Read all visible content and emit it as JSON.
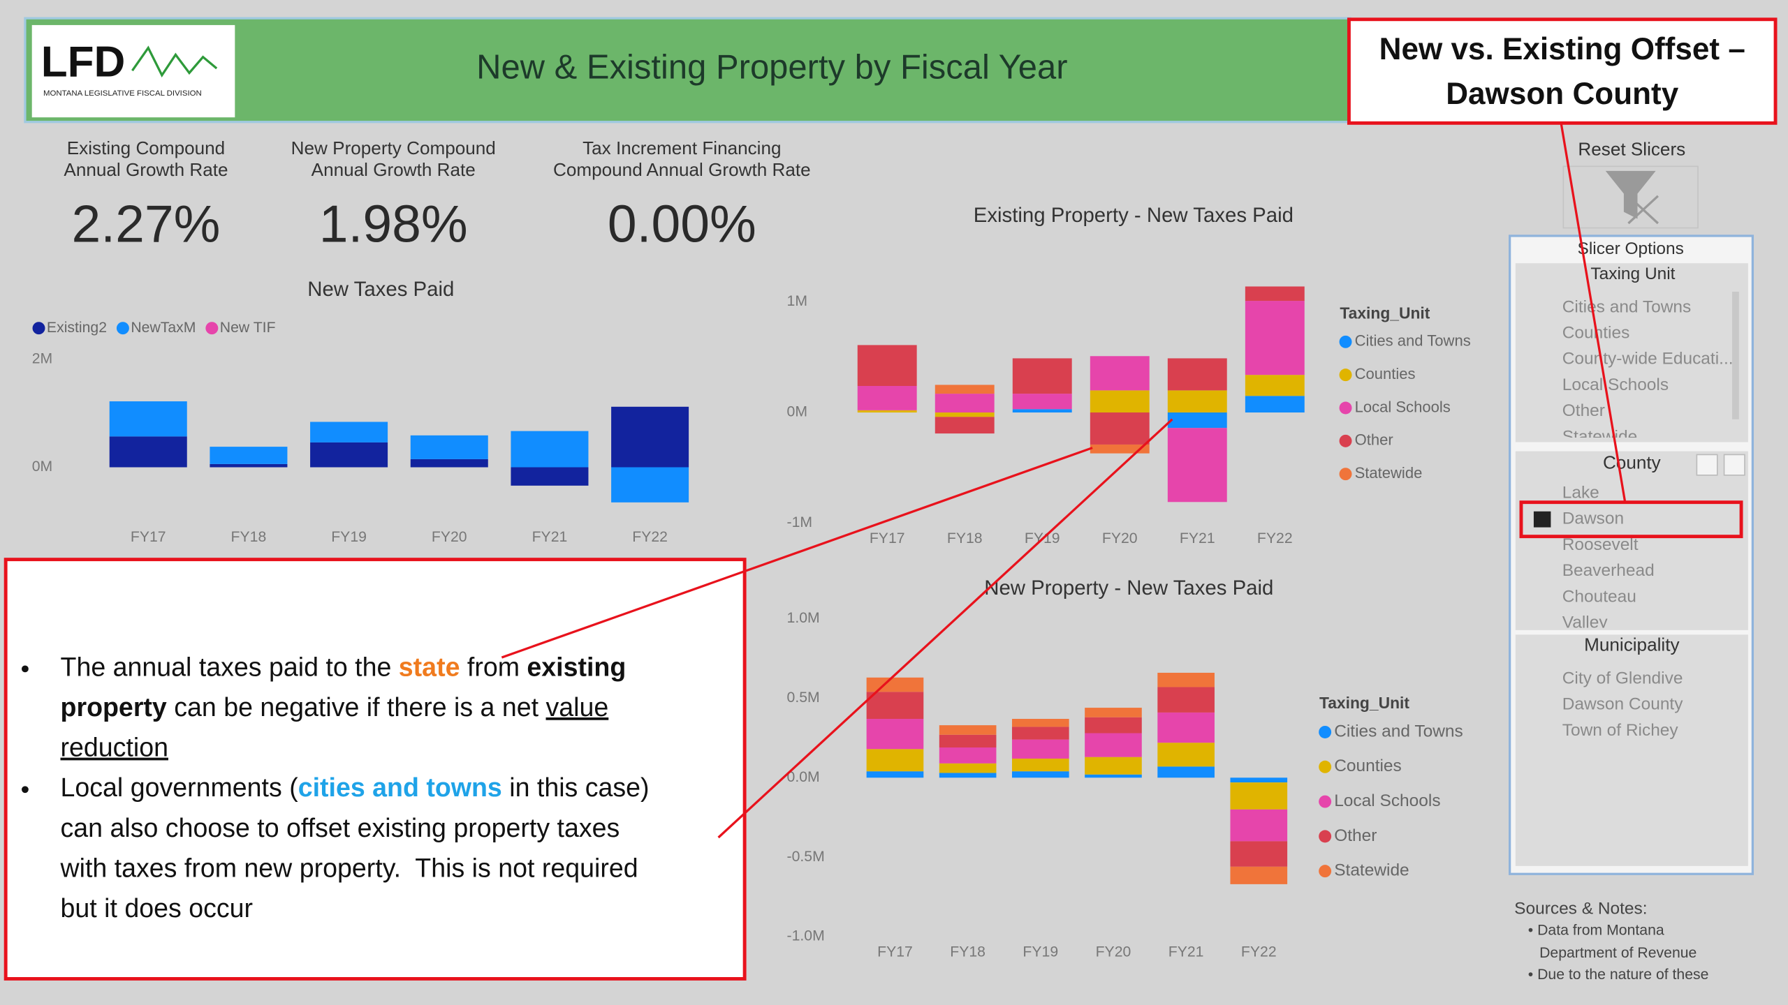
{
  "header": {
    "logo": "LFD",
    "logo_subtitle": "MONTANA LEGISLATIVE FISCAL DIVISION",
    "title": "New & Existing Property by Fiscal Year"
  },
  "callout_title": [
    "New vs. Existing Offset –",
    "Dawson County"
  ],
  "kpis": [
    {
      "label": [
        "Existing Compound",
        "Annual Growth Rate"
      ],
      "value": "2.27%"
    },
    {
      "label": [
        "New Property Compound",
        "Annual Growth Rate"
      ],
      "value": "1.98%"
    },
    {
      "label": [
        "Tax Increment Financing",
        "Compound Annual Growth Rate"
      ],
      "value": "0.00%"
    }
  ],
  "annotation": {
    "bullets": [
      {
        "lines": [
          [
            {
              "text": "The annual taxes paid to the ",
              "style": "normal"
            },
            {
              "text": "state",
              "style": "orange"
            },
            {
              "text": " from ",
              "style": "normal"
            },
            {
              "text": "existing",
              "style": "bold"
            }
          ],
          [
            {
              "text": "property",
              "style": "bold"
            },
            {
              "text": " can be negative if there is a net ",
              "style": "normal"
            },
            {
              "text": "value",
              "style": "underline"
            }
          ],
          [
            {
              "text": "reduction",
              "style": "underline"
            }
          ]
        ]
      },
      {
        "lines": [
          [
            {
              "text": "Local governments (",
              "style": "normal"
            },
            {
              "text": "cities and towns",
              "style": "blue"
            },
            {
              "text": " in this case)",
              "style": "normal"
            }
          ],
          [
            {
              "text": "can also choose to offset existing property taxes",
              "style": "normal"
            }
          ],
          [
            {
              "text": "with taxes from new property.  This is not required",
              "style": "normal"
            }
          ],
          [
            {
              "text": "but it does occur",
              "style": "normal"
            }
          ]
        ]
      }
    ]
  },
  "slicers": {
    "reset": "Reset Slicers",
    "panel_title": "Slicer Options",
    "taxing_unit": {
      "title": "Taxing Unit",
      "items": [
        "Cities and Towns",
        "Counties",
        "County-wide Educati...",
        "Local Schools",
        "Other",
        "Statewide"
      ]
    },
    "county": {
      "title": "County",
      "items": [
        "Lake",
        "Dawson",
        "Roosevelt",
        "Beaverhead",
        "Chouteau",
        "Valley"
      ],
      "selected": 1
    },
    "municipality": {
      "title": "Municipality",
      "items": [
        "City of Glendive",
        "Dawson County",
        "Town of Richey"
      ]
    }
  },
  "sources": {
    "title": "Sources & Notes:",
    "lines": [
      "• Data from Montana",
      "Department of Revenue",
      "• Due to the nature of these"
    ]
  },
  "chart_data": [
    {
      "type": "bar",
      "stacked": true,
      "title": "New Taxes Paid",
      "legend": "top-left",
      "categories": [
        "FY17",
        "FY18",
        "FY19",
        "FY20",
        "FY21",
        "FY22"
      ],
      "series": [
        {
          "name": "Existing2",
          "color": "#12239E",
          "values": [
            570000,
            60000,
            460000,
            150000,
            -340000,
            1120000
          ]
        },
        {
          "name": "NewTaxM",
          "color": "#118DFF",
          "values": [
            650000,
            320000,
            380000,
            440000,
            670000,
            -650000
          ]
        },
        {
          "name": "New TIF",
          "color": "#E645AB",
          "values": [
            0,
            0,
            0,
            0,
            0,
            0
          ]
        }
      ],
      "ylim": [
        -1000000,
        2300000
      ],
      "yticks": [
        {
          "value": 0,
          "label": "0M"
        },
        {
          "value": 2000000,
          "label": "2M"
        }
      ]
    },
    {
      "type": "bar",
      "stacked": true,
      "title": "Existing Property - New Taxes Paid",
      "legend": "right",
      "legend_title": "Taxing_Unit",
      "categories": [
        "FY17",
        "FY18",
        "FY19",
        "FY20",
        "FY21",
        "FY22"
      ],
      "series": [
        {
          "name": "Cities and Towns",
          "color": "#118DFF",
          "values": [
            0,
            0,
            30000,
            0,
            -140000,
            150000
          ]
        },
        {
          "name": "Counties",
          "color": "#E0B400",
          "values": [
            20000,
            -40000,
            0,
            200000,
            200000,
            190000
          ]
        },
        {
          "name": "Local Schools",
          "color": "#E645AB",
          "values": [
            220000,
            170000,
            140000,
            310000,
            -670000,
            670000
          ]
        },
        {
          "name": "Other",
          "color": "#D9404F",
          "values": [
            370000,
            -150000,
            320000,
            -290000,
            290000,
            130000
          ]
        },
        {
          "name": "Statewide",
          "color": "#F0743A",
          "values": [
            0,
            80000,
            0,
            -80000,
            0,
            0
          ]
        }
      ],
      "ylim": [
        -1050000,
        1200000
      ],
      "yticks": [
        {
          "value": -1000000,
          "label": "-1M"
        },
        {
          "value": 0,
          "label": "0M"
        },
        {
          "value": 1000000,
          "label": "1M"
        }
      ]
    },
    {
      "type": "bar",
      "stacked": true,
      "title": "New Property - New Taxes Paid",
      "legend": "right",
      "legend_title": "Taxing_Unit",
      "categories": [
        "FY17",
        "FY18",
        "FY19",
        "FY20",
        "FY21",
        "FY22"
      ],
      "series": [
        {
          "name": "Cities and Towns",
          "color": "#118DFF",
          "values": [
            40000,
            30000,
            40000,
            20000,
            70000,
            -30000
          ]
        },
        {
          "name": "Counties",
          "color": "#E0B400",
          "values": [
            140000,
            60000,
            80000,
            110000,
            150000,
            -170000
          ]
        },
        {
          "name": "Local Schools",
          "color": "#E645AB",
          "values": [
            190000,
            100000,
            120000,
            150000,
            190000,
            -200000
          ]
        },
        {
          "name": "Other",
          "color": "#D9404F",
          "values": [
            170000,
            80000,
            80000,
            100000,
            160000,
            -160000
          ]
        },
        {
          "name": "Statewide",
          "color": "#F0743A",
          "values": [
            90000,
            60000,
            50000,
            60000,
            90000,
            -110000
          ]
        }
      ],
      "ylim": [
        -1000000,
        1000000
      ],
      "yticks": [
        {
          "value": -1000000,
          "label": "-1.0M"
        },
        {
          "value": -500000,
          "label": "-0.5M"
        },
        {
          "value": 0,
          "label": "0.0M"
        },
        {
          "value": 500000,
          "label": "0.5M"
        },
        {
          "value": 1000000,
          "label": "1.0M"
        }
      ]
    }
  ]
}
